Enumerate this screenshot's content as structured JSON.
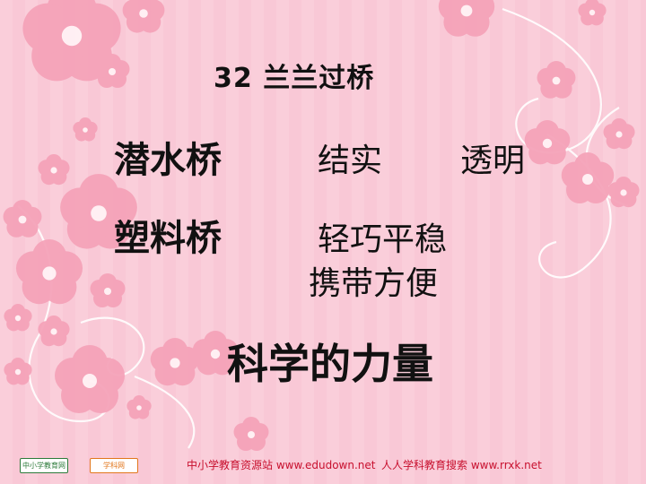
{
  "slide": {
    "title": "32   兰兰过桥",
    "row1": {
      "term": "潜水桥",
      "attr1": "结实",
      "attr2": "透明"
    },
    "row2": {
      "term": "塑料桥",
      "attr1": "轻巧平稳",
      "attr2": "携带方便"
    },
    "conclusion": "科学的力量"
  },
  "footer": {
    "left_text": "中小学教育资源站 www.edudown.net",
    "right_text": "人人学科教育搜索  www.rrxk.net",
    "text_color": "#c8102e"
  },
  "logos": {
    "left_logo_text": "中小学教育网",
    "second_logo_text": "学科网"
  },
  "colors": {
    "background": "#f9c8d6",
    "blossom": "#f5a3b9",
    "vine": "#ffffff"
  }
}
